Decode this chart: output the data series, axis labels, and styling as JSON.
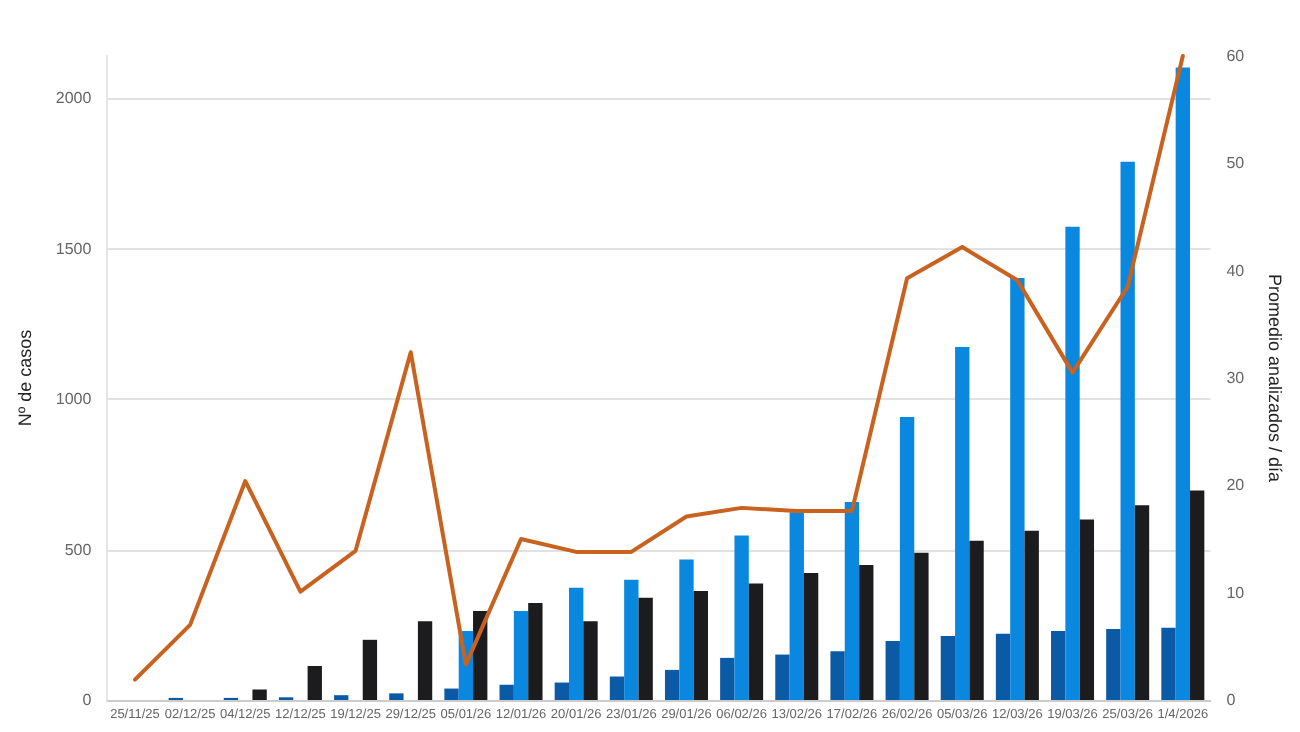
{
  "chart_data": {
    "type": "bar",
    "ylabel": "Nº de casos",
    "y2label": "Promedio analizados / día",
    "categories": [
      "25/11/25",
      "02/12/25",
      "04/12/25",
      "12/12/25",
      "19/12/25",
      "29/12/25",
      "05/01/26",
      "12/01/26",
      "20/01/26",
      "23/01/26",
      "29/01/26",
      "06/02/26",
      "13/02/26",
      "17/02/26",
      "26/02/26",
      "05/03/26",
      "12/03/26",
      "19/03/26",
      "25/03/26",
      "1/4/2026"
    ],
    "series": [
      {
        "color": "#0b5aa6",
        "values": [
          0,
          7,
          7,
          9,
          16,
          22,
          38,
          51,
          58,
          78,
          100,
          140,
          151,
          162,
          196,
          213,
          220,
          229,
          236,
          240
        ]
      },
      {
        "color": "#0a88e0",
        "values": [
          0,
          0,
          0,
          0,
          0,
          0,
          229,
          296,
          373,
          400,
          467,
          547,
          624,
          658,
          940,
          1173,
          1402,
          1573,
          1789,
          2102
        ]
      },
      {
        "color": "#1c1c1e",
        "values": [
          0,
          0,
          35,
          113,
          200,
          262,
          296,
          322,
          262,
          340,
          362,
          387,
          422,
          449,
          489,
          529,
          562,
          600,
          647,
          696
        ]
      },
      {
        "type": "line",
        "axis": "y2",
        "color": "#c8621e",
        "values": [
          1.9,
          7.0,
          20.4,
          10.1,
          13.9,
          32.4,
          3.3,
          15.0,
          13.8,
          13.8,
          17.1,
          17.9,
          17.6,
          17.6,
          39.3,
          42.2,
          39.1,
          30.5,
          38.5,
          60
        ]
      }
    ],
    "ylim": [
      0,
      2140
    ],
    "yticks": [
      0,
      500,
      1000,
      1500,
      2000
    ],
    "y2lim": [
      0,
      60
    ],
    "y2ticks": [
      0,
      10,
      20,
      30,
      40,
      50,
      60
    ],
    "grid": "y",
    "marker": "none",
    "line_style": "solid"
  }
}
